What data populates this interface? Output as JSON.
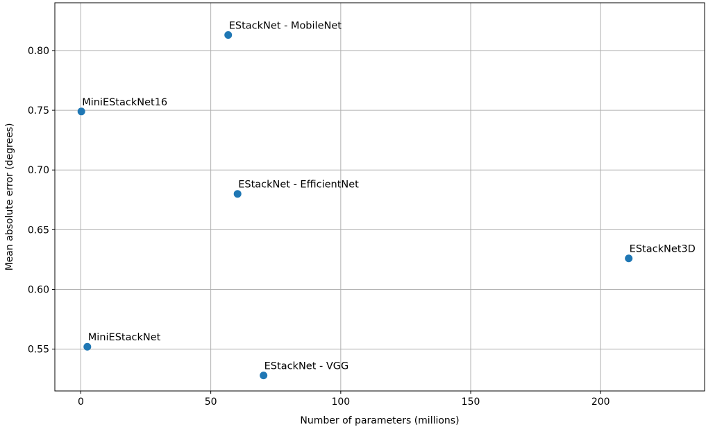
{
  "chart_data": {
    "type": "scatter",
    "title": "",
    "xlabel": "Number of parameters (millions)",
    "ylabel": "Mean absolute error (degrees)",
    "xlim": [
      -10,
      240
    ],
    "ylim": [
      0.515,
      0.84
    ],
    "x_ticks": [
      0,
      50,
      100,
      150,
      200
    ],
    "y_ticks": [
      0.55,
      0.6,
      0.65,
      0.7,
      0.75,
      0.8
    ],
    "grid": true,
    "point_color": "#1f77b4",
    "points": [
      {
        "label": "EStackNet - MobileNet",
        "x": 56.7,
        "y": 0.813
      },
      {
        "label": "MiniEStackNet16",
        "x": 0.2,
        "y": 0.749
      },
      {
        "label": "EStackNet - EfficientNet",
        "x": 60.3,
        "y": 0.68
      },
      {
        "label": "EStackNet3D",
        "x": 210.8,
        "y": 0.626
      },
      {
        "label": "MiniEStackNet",
        "x": 2.5,
        "y": 0.552
      },
      {
        "label": "EStackNet - VGG",
        "x": 70.3,
        "y": 0.528
      }
    ]
  }
}
